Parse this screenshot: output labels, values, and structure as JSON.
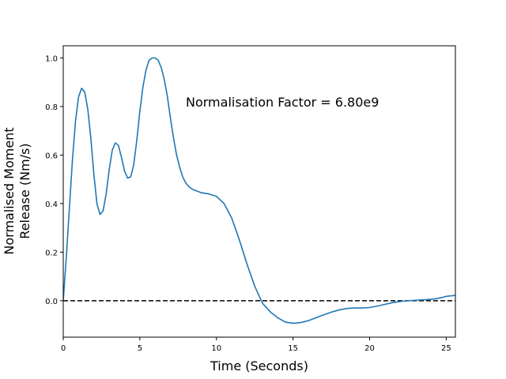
{
  "chart_data": {
    "type": "line",
    "title": "",
    "xlabel": "Time (Seconds)",
    "ylabel_lines": [
      "Normalised Moment",
      "Release (Nm/s)"
    ],
    "xlim": [
      0,
      25.6
    ],
    "ylim": [
      -0.15,
      1.05
    ],
    "xticks": [
      0,
      5,
      10,
      15,
      20,
      25
    ],
    "yticks": [
      0.0,
      0.2,
      0.4,
      0.6,
      0.8,
      1.0
    ],
    "xtick_labels": [
      "0",
      "5",
      "10",
      "15",
      "20",
      "25"
    ],
    "ytick_labels": [
      "0.0",
      "0.2",
      "0.4",
      "0.6",
      "0.8",
      "1.0"
    ],
    "annotation": "Normalisation Factor = 6.80e9",
    "grid": false,
    "reference_line": {
      "y": 0.0,
      "style": "dashed",
      "color": "#000000"
    },
    "series": [
      {
        "color": "#1f77b4",
        "x": [
          0,
          0.2,
          0.4,
          0.6,
          0.8,
          1.0,
          1.2,
          1.4,
          1.6,
          1.8,
          2.0,
          2.2,
          2.4,
          2.6,
          2.8,
          3.0,
          3.2,
          3.4,
          3.6,
          3.8,
          4.0,
          4.2,
          4.4,
          4.6,
          4.8,
          5.0,
          5.2,
          5.4,
          5.6,
          5.8,
          6.0,
          6.2,
          6.4,
          6.6,
          6.8,
          7.0,
          7.2,
          7.4,
          7.6,
          7.8,
          8.0,
          8.2,
          8.4,
          8.6,
          8.8,
          9.0,
          9.5,
          10.0,
          10.5,
          11.0,
          11.5,
          12.0,
          12.5,
          13.0,
          13.5,
          14.0,
          14.5,
          15.0,
          15.5,
          16.0,
          16.5,
          17.0,
          17.5,
          18.0,
          18.5,
          19.0,
          19.5,
          20.0,
          20.5,
          21.0,
          21.5,
          22.0,
          22.5,
          23.0,
          23.5,
          24.0,
          24.5,
          25.0,
          25.6
        ],
        "y": [
          0.0,
          0.18,
          0.38,
          0.58,
          0.74,
          0.84,
          0.875,
          0.86,
          0.79,
          0.67,
          0.52,
          0.4,
          0.355,
          0.37,
          0.44,
          0.54,
          0.62,
          0.65,
          0.64,
          0.59,
          0.535,
          0.505,
          0.51,
          0.56,
          0.66,
          0.78,
          0.88,
          0.95,
          0.99,
          1.0,
          1.0,
          0.99,
          0.96,
          0.91,
          0.84,
          0.75,
          0.67,
          0.6,
          0.55,
          0.51,
          0.485,
          0.47,
          0.46,
          0.455,
          0.45,
          0.445,
          0.44,
          0.43,
          0.4,
          0.34,
          0.25,
          0.15,
          0.06,
          -0.01,
          -0.045,
          -0.07,
          -0.088,
          -0.093,
          -0.09,
          -0.082,
          -0.07,
          -0.058,
          -0.047,
          -0.038,
          -0.032,
          -0.03,
          -0.03,
          -0.028,
          -0.022,
          -0.015,
          -0.008,
          -0.003,
          0.0,
          0.002,
          0.004,
          0.006,
          0.01,
          0.018,
          0.022
        ]
      }
    ]
  },
  "colors": {
    "line": "#1f77b4",
    "axes": "#000000",
    "background": "#ffffff"
  }
}
